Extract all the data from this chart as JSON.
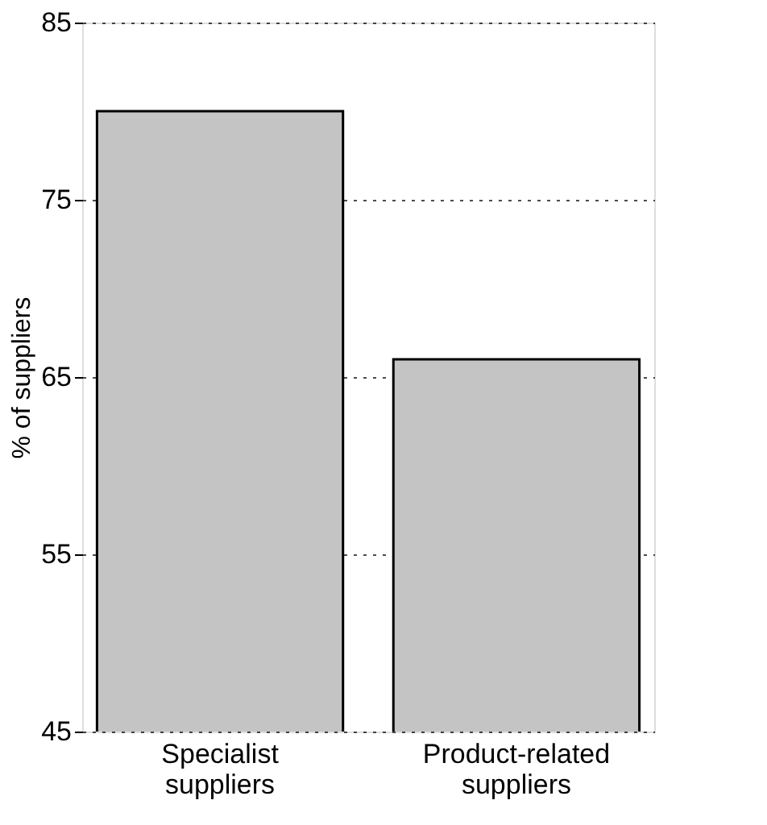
{
  "chart_data": {
    "type": "bar",
    "ylabel": "% of suppliers",
    "categories": [
      "Specialist suppliers",
      "Product-related suppliers"
    ],
    "values": [
      80,
      66
    ],
    "color": "#c4c4c4",
    "ylim": [
      45,
      85
    ],
    "yticks": [
      45,
      55,
      65,
      75,
      85
    ],
    "grid": "y"
  }
}
